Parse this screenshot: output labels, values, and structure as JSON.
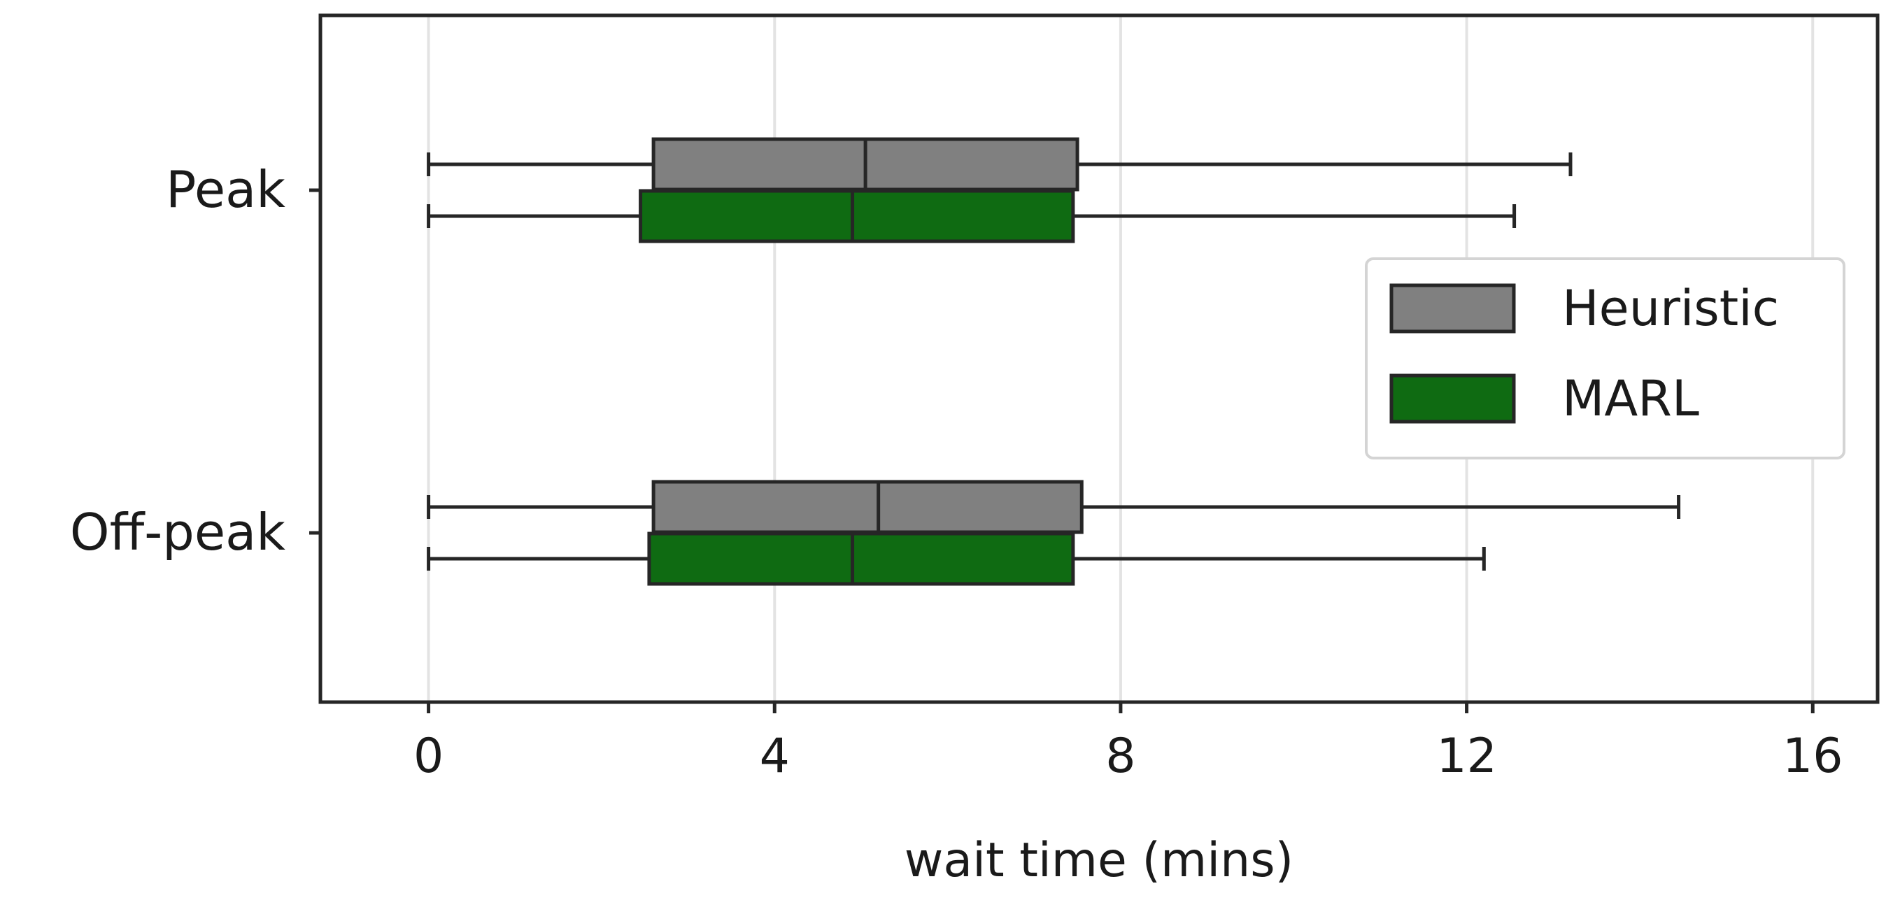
{
  "chart_data": {
    "type": "boxplot",
    "orientation": "horizontal",
    "xlabel": "wait time (mins)",
    "ylabel": "",
    "xlim": [
      -1.25,
      16.75
    ],
    "xticks": [
      0,
      4,
      8,
      12,
      16
    ],
    "grid": "vertical",
    "categories": [
      "Peak",
      "Off-peak"
    ],
    "legend": {
      "placement": "center-right",
      "entries": [
        "Heuristic",
        "MARL"
      ]
    },
    "series": [
      {
        "name": "Heuristic",
        "color": "#808080",
        "boxes": [
          {
            "category": "Peak",
            "whisker_low": 0,
            "q1": 2.6,
            "median": 5.05,
            "q3": 7.5,
            "whisker_high": 13.2
          },
          {
            "category": "Off-peak",
            "whisker_low": 0,
            "q1": 2.6,
            "median": 5.2,
            "q3": 7.55,
            "whisker_high": 14.45
          }
        ]
      },
      {
        "name": "MARL",
        "color": "#0f6b12",
        "boxes": [
          {
            "category": "Peak",
            "whisker_low": 0,
            "q1": 2.45,
            "median": 4.9,
            "q3": 7.45,
            "whisker_high": 12.55
          },
          {
            "category": "Off-peak",
            "whisker_low": 0,
            "q1": 2.55,
            "median": 4.9,
            "q3": 7.45,
            "whisker_high": 12.2
          }
        ]
      }
    ]
  }
}
